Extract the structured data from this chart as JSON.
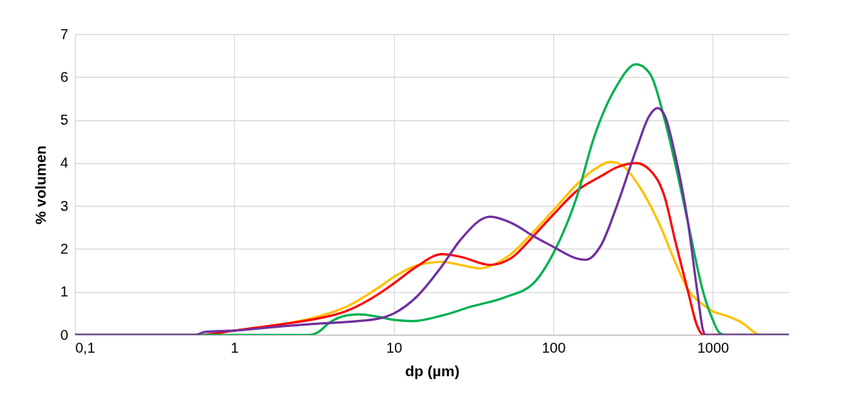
{
  "chart_data": {
    "type": "line",
    "xlabel": "dp (µm)",
    "ylabel": "% volumen",
    "log": "x",
    "grid": true,
    "marker": "none",
    "line_style": "solid",
    "xlim": [
      0.1,
      3000
    ],
    "xticks": [
      {
        "value": 0.1,
        "label": "0,1"
      },
      1,
      10,
      100,
      1000
    ],
    "ylim": [
      0,
      7
    ],
    "yticks": [
      0,
      1,
      2,
      3,
      4,
      5,
      6,
      7
    ],
    "series": [
      {
        "color": "#ffc000",
        "x": [
          1,
          2,
          3,
          5,
          8,
          10,
          14,
          20,
          26,
          35,
          40,
          55,
          75,
          100,
          140,
          180,
          230,
          280,
          340,
          460,
          580,
          700,
          870,
          1000,
          1200,
          1500,
          2000,
          3000
        ],
        "values": [
          0.1,
          0.25,
          0.38,
          0.65,
          1.1,
          1.35,
          1.62,
          1.7,
          1.63,
          1.55,
          1.6,
          1.9,
          2.4,
          2.9,
          3.5,
          3.85,
          4.03,
          3.9,
          3.5,
          2.6,
          1.7,
          1.05,
          0.7,
          0.55,
          0.45,
          0.3,
          0,
          0
        ]
      },
      {
        "color": "#ff0000",
        "x": [
          0.1,
          0.6,
          1,
          2,
          3,
          5,
          8,
          10,
          14,
          20,
          26,
          40,
          55,
          75,
          100,
          140,
          200,
          250,
          330,
          400,
          500,
          580,
          700,
          800,
          870,
          3000
        ],
        "values": [
          0,
          0,
          0.1,
          0.25,
          0.35,
          0.55,
          0.95,
          1.2,
          1.6,
          1.88,
          1.82,
          1.63,
          1.8,
          2.3,
          2.8,
          3.35,
          3.7,
          3.9,
          4,
          3.85,
          3.2,
          2.2,
          1,
          0.2,
          0,
          0
        ]
      },
      {
        "color": "#00b050",
        "x": [
          0.1,
          3,
          3.3,
          4,
          5,
          6,
          8,
          10,
          13,
          20,
          30,
          50,
          75,
          100,
          140,
          180,
          250,
          330,
          400,
          500,
          580,
          700,
          870,
          1000,
          1100,
          1200,
          3000
        ],
        "values": [
          0,
          0,
          0.05,
          0.3,
          0.45,
          0.48,
          0.42,
          0.35,
          0.32,
          0.45,
          0.65,
          0.88,
          1.2,
          1.9,
          3.2,
          4.6,
          5.8,
          6.3,
          6.1,
          5,
          4,
          2.6,
          1,
          0.35,
          0.05,
          0,
          0
        ]
      },
      {
        "color": "#7030a0",
        "x": [
          0.1,
          0.57,
          0.65,
          1,
          2,
          3,
          5,
          8,
          10,
          14,
          20,
          26,
          40,
          55,
          75,
          100,
          140,
          160,
          200,
          250,
          330,
          400,
          450,
          500,
          580,
          700,
          800,
          870,
          900,
          3000
        ],
        "values": [
          0,
          0,
          0.07,
          0.1,
          0.2,
          0.25,
          0.3,
          0.38,
          0.5,
          0.9,
          1.6,
          2.2,
          2.75,
          2.6,
          2.3,
          2.05,
          1.78,
          1.75,
          2.1,
          3,
          4.3,
          5.1,
          5.28,
          5.1,
          4.2,
          2.6,
          1,
          0.1,
          0,
          0
        ]
      }
    ]
  }
}
